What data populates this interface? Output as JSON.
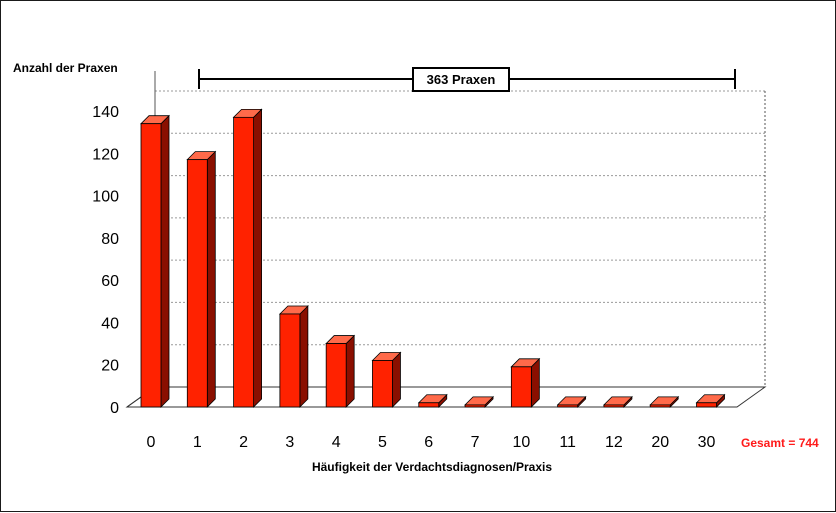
{
  "chart_data": {
    "type": "bar",
    "ylabel": "Anzahl der Praxen",
    "xlabel": "Häufigkeit der Verdachtsdiagnosen/Praxis",
    "categories": [
      "0",
      "1",
      "2",
      "3",
      "4",
      "5",
      "6",
      "7",
      "10",
      "11",
      "12",
      "20",
      "30"
    ],
    "values": [
      134,
      117,
      137,
      44,
      30,
      22,
      2,
      1,
      19,
      1,
      1,
      1,
      2
    ],
    "ylim": [
      0,
      140
    ],
    "yticks": [
      0,
      20,
      40,
      60,
      80,
      100,
      120,
      140
    ],
    "grid": true,
    "bracket_label": "363 Praxen",
    "total_label": "Gesamt = 744",
    "colors": {
      "bar_front": "#ff2200",
      "bar_side": "#8a0f00",
      "bar_top": "#ff6a4a",
      "total_text": "#ff1a1a"
    }
  }
}
